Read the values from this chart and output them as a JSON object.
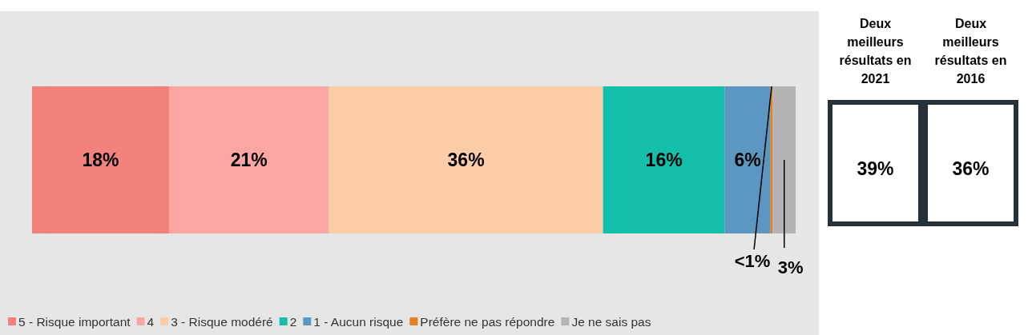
{
  "chart_data": [
    {
      "type": "bar",
      "orientation": "horizontal",
      "stacked": true,
      "categories": [
        null
      ],
      "xlim": [
        0,
        100.3
      ],
      "legend": "bottom",
      "series": [
        {
          "name": "5 - Risque important",
          "color": "#f4827c",
          "values": [
            18
          ],
          "value_labels": [
            "18%"
          ]
        },
        {
          "name": "4",
          "color": "#fca6a4",
          "values": [
            21
          ],
          "value_labels": [
            "21%"
          ]
        },
        {
          "name": "3 - Risque modéré",
          "color": "#fdcdaa",
          "values": [
            36
          ],
          "value_labels": [
            "36%"
          ]
        },
        {
          "name": "2",
          "color": "#13bfaa",
          "values": [
            16
          ],
          "value_labels": [
            "16%"
          ]
        },
        {
          "name": "1 - Aucun risque",
          "color": "#5b97c0",
          "values": [
            6
          ],
          "value_labels": [
            "6%"
          ]
        },
        {
          "name": "Préfère ne pas répondre",
          "color": "#e67e22",
          "values": [
            0.3
          ],
          "value_labels": [
            "<1%"
          ]
        },
        {
          "name": "Je ne sais pas",
          "color": "#b4b4b4",
          "values": [
            3
          ],
          "value_labels": [
            "3%"
          ]
        }
      ]
    },
    {
      "type": "other",
      "categories": [
        "Deux meilleurs résultats en 2021",
        "Deux meilleurs résultats en 2016"
      ],
      "value_labels": [
        "39%",
        "36%"
      ]
    }
  ]
}
